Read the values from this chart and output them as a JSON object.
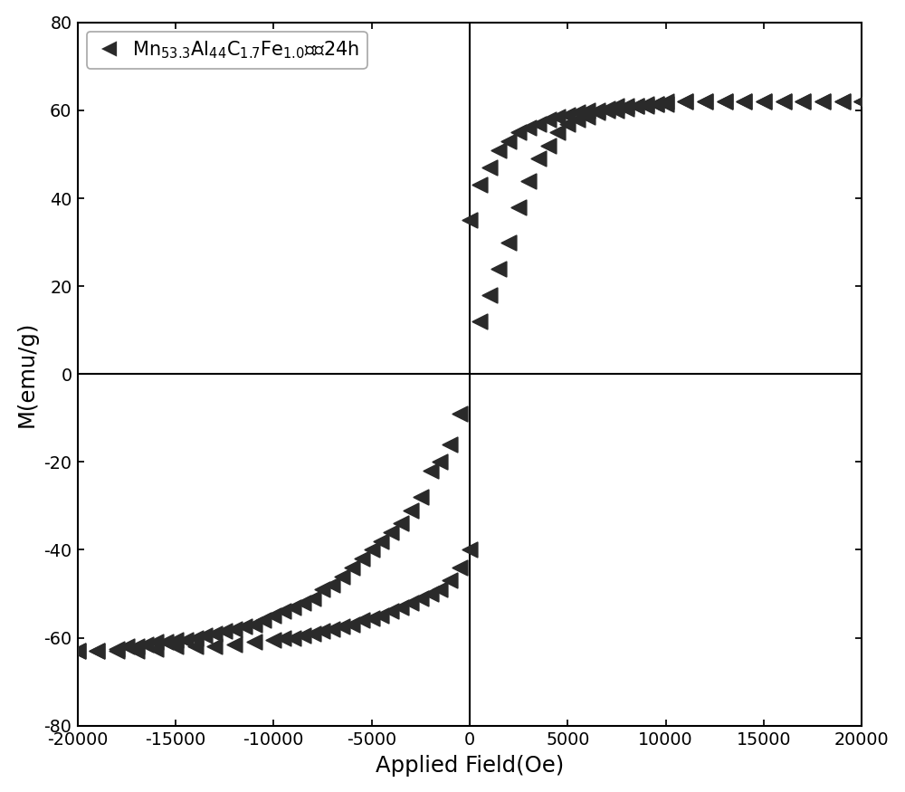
{
  "xlabel": "Applied Field(Oe)",
  "ylabel": "M(emu/g)",
  "xlim": [
    -20000,
    20000
  ],
  "ylim": [
    -80,
    80
  ],
  "xticks": [
    -20000,
    -15000,
    -10000,
    -5000,
    0,
    5000,
    10000,
    15000,
    20000
  ],
  "yticks": [
    -80,
    -60,
    -40,
    -20,
    0,
    20,
    40,
    60,
    80
  ],
  "marker_color": "#2a2a2a",
  "background_color": "#ffffff",
  "upper_branch_H": [
    -20000,
    -19000,
    -18000,
    -17500,
    -17000,
    -16500,
    -16000,
    -15500,
    -15000,
    -14500,
    -14000,
    -13500,
    -13000,
    -12500,
    -12000,
    -11500,
    -11000,
    -10500,
    -10000,
    -9500,
    -9000,
    -8500,
    -8000,
    -7500,
    -7000,
    -6500,
    -6000,
    -5500,
    -5000,
    -4500,
    -4000,
    -3500,
    -3000,
    -2500,
    -2000,
    -1500,
    -1000,
    -500,
    0,
    500,
    1000,
    1500,
    2000,
    2500,
    3000,
    3500,
    4000,
    4500,
    5000,
    5500,
    6000,
    6500,
    7000,
    7500,
    8000,
    8500,
    9000,
    9500,
    10000,
    11000,
    12000,
    13000,
    14000,
    15000,
    16000,
    17000,
    18000,
    19000,
    20000
  ],
  "upper_branch_M": [
    -63,
    -63,
    -62.5,
    -62,
    -62,
    -61.5,
    -61,
    -61,
    -60.5,
    -60.5,
    -60,
    -59.5,
    -59,
    -58.5,
    -58,
    -57.5,
    -57,
    -56,
    -55,
    -54,
    -53,
    -52,
    -51,
    -49,
    -48,
    -46,
    -44,
    -42,
    -40,
    -38,
    -36,
    -34,
    -31,
    -28,
    -22,
    -20,
    -16,
    -9,
    35,
    43,
    47,
    51,
    53,
    55,
    56,
    57,
    58,
    58.5,
    59,
    59.5,
    60,
    60,
    60.5,
    61,
    61,
    61,
    61.5,
    61.5,
    62,
    62,
    62,
    62,
    62,
    62,
    62,
    62,
    62,
    62,
    62
  ],
  "lower_branch_H": [
    20000,
    19000,
    18000,
    17000,
    16000,
    15000,
    14000,
    13000,
    12000,
    11000,
    10000,
    9500,
    9000,
    8500,
    8000,
    7500,
    7000,
    6500,
    6000,
    5500,
    5000,
    4500,
    4000,
    3500,
    3000,
    2500,
    2000,
    1500,
    1000,
    500,
    0,
    -500,
    -1000,
    -1500,
    -2000,
    -2500,
    -3000,
    -3500,
    -4000,
    -4500,
    -5000,
    -5500,
    -6000,
    -6500,
    -7000,
    -7500,
    -8000,
    -8500,
    -9000,
    -9500,
    -10000,
    -11000,
    -12000,
    -13000,
    -14000,
    -15000,
    -16000,
    -17000,
    -18000,
    -19000,
    -20000
  ],
  "lower_branch_M": [
    62,
    62,
    62,
    62,
    62,
    62,
    62,
    62,
    62,
    62,
    61.5,
    61.5,
    61,
    61,
    60.5,
    60,
    60,
    59.5,
    58.5,
    58,
    57,
    55,
    52,
    49,
    44,
    38,
    30,
    24,
    18,
    12,
    -40,
    -44,
    -47,
    -49,
    -50,
    -51,
    -52,
    -53,
    -54,
    -55,
    -55.5,
    -56,
    -57,
    -57.5,
    -58,
    -58.5,
    -59,
    -59.5,
    -60,
    -60,
    -60.5,
    -61,
    -61.5,
    -62,
    -62,
    -62,
    -62.5,
    -63,
    -63,
    -63,
    -63
  ]
}
